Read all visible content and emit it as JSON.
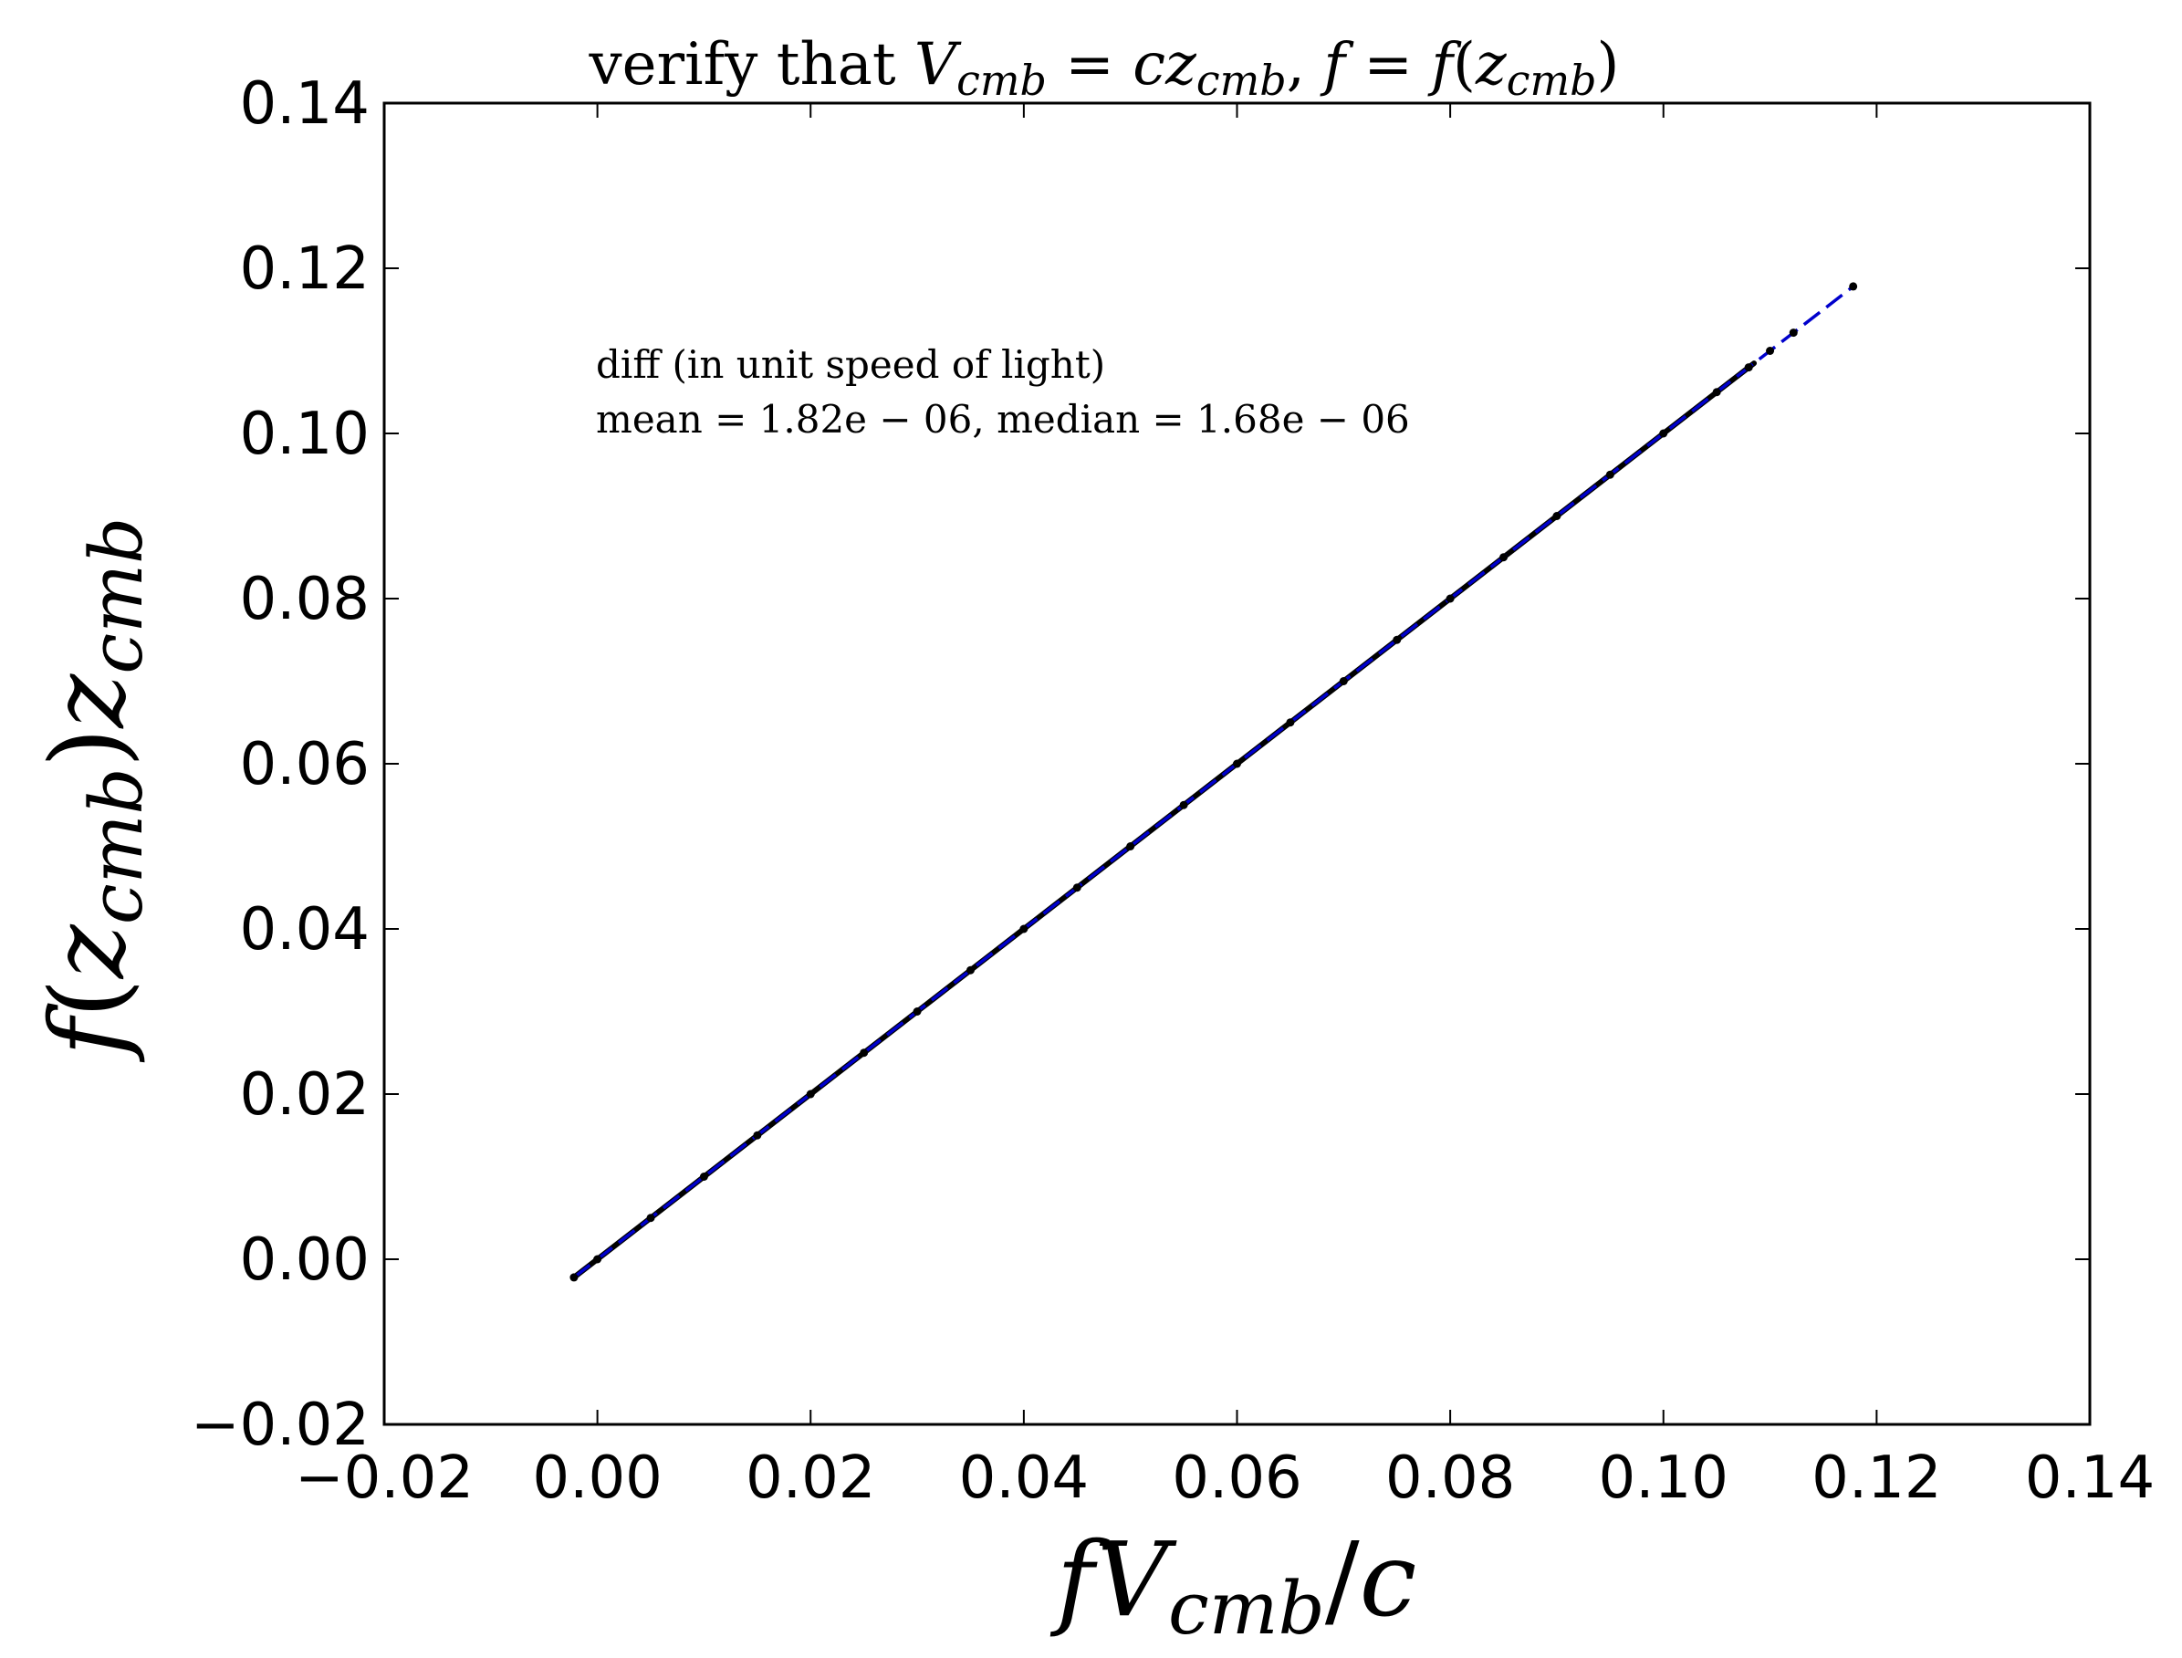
{
  "chart_data": {
    "type": "scatter",
    "title": {
      "prefix": "verify that ",
      "V": "V",
      "sub1": "cmb",
      "eq1": " = ",
      "c": "c",
      "z": "z",
      "sub2": "cmb",
      "sep": ",  ",
      "f1": "f",
      "eq2": " = ",
      "f2": "f",
      "open": "(",
      "z2": "z",
      "sub3": "cmb",
      "close": ")"
    },
    "xlabel": {
      "f": "f",
      "V": "V",
      "sub": "cmb",
      "slash": "/",
      "c": "c"
    },
    "ylabel": {
      "f": "f",
      "open": "(",
      "z": "z",
      "sub1": "cmb",
      "close": ")",
      "z2": "z",
      "sub2": "cmb"
    },
    "annotation": {
      "line1": "diff (in unit speed of light)",
      "line2": "mean = 1.82e − 06,  median = 1.68e − 06"
    },
    "xlim": [
      -0.02,
      0.14
    ],
    "ylim": [
      -0.02,
      0.14
    ],
    "xticks": [
      "−0.02",
      "0.00",
      "0.02",
      "0.04",
      "0.06",
      "0.08",
      "0.10",
      "0.12",
      "0.14"
    ],
    "yticks": [
      "−0.02",
      "0.00",
      "0.02",
      "0.04",
      "0.06",
      "0.08",
      "0.10",
      "0.12",
      "0.14"
    ],
    "xtick_values": [
      -0.02,
      0,
      0.02,
      0.04,
      0.06,
      0.08,
      0.1,
      0.12,
      0.14
    ],
    "ytick_values": [
      -0.02,
      0,
      0.02,
      0.04,
      0.06,
      0.08,
      0.1,
      0.12,
      0.14
    ],
    "grid": false,
    "series": [
      {
        "marker": "dot",
        "color": "#000000",
        "x": [
          -0.0022,
          0.0,
          0.005,
          0.01,
          0.015,
          0.02,
          0.025,
          0.03,
          0.035,
          0.04,
          0.045,
          0.05,
          0.055,
          0.06,
          0.065,
          0.07,
          0.075,
          0.08,
          0.085,
          0.09,
          0.095,
          0.1,
          0.105,
          0.108,
          0.11,
          0.1122,
          0.1178
        ],
        "y": [
          -0.0022,
          0.0,
          0.005,
          0.01,
          0.015,
          0.02,
          0.025,
          0.03,
          0.035,
          0.04,
          0.045,
          0.05,
          0.055,
          0.06,
          0.065,
          0.07,
          0.075,
          0.08,
          0.085,
          0.09,
          0.095,
          0.1,
          0.105,
          0.108,
          0.11,
          0.1122,
          0.1178
        ]
      },
      {
        "style": "dashed line",
        "color": "#0000cc",
        "x": [
          -0.0022,
          0.1178
        ],
        "y": [
          -0.0022,
          0.1178
        ]
      }
    ]
  }
}
